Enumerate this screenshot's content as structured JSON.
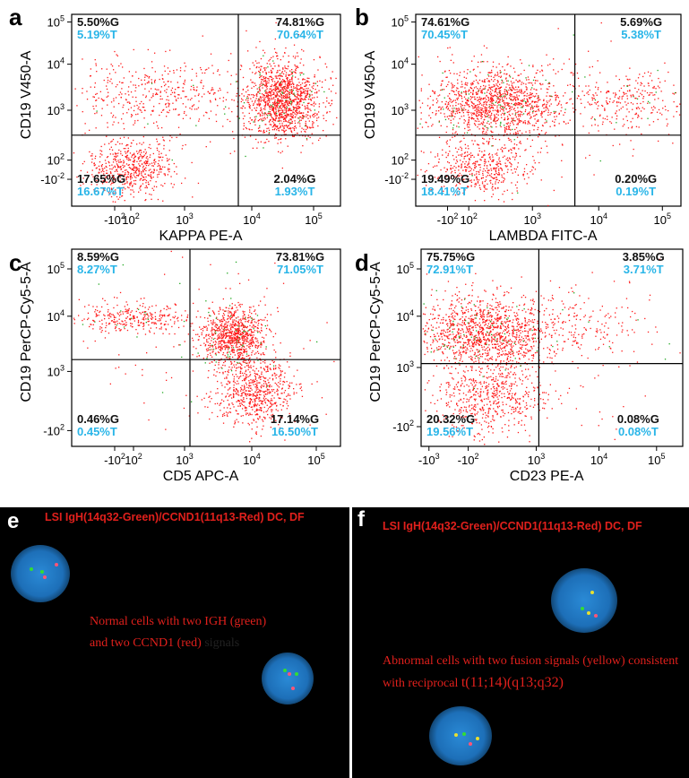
{
  "colors": {
    "gated": "#ff1a1a",
    "gated_green": "#22a822",
    "total_pct": "#29b5e8",
    "gate_pct": "#111111",
    "fish_red": "#e0201c",
    "fish_green": "#33dd33",
    "fish_yellow": "#e8e030",
    "nucleus": "#1e78c8"
  },
  "panels": [
    {
      "letter": "a",
      "ylabel": "CD19 V450-A",
      "xlabel": "KAPPA PE-A",
      "yticks": [
        {
          "label": "10",
          "exp": "5"
        },
        {
          "label": "10",
          "exp": "4"
        },
        {
          "label": "10",
          "exp": "3"
        },
        {
          "label": "10",
          "exp": "2"
        },
        {
          "label": "-10",
          "exp": "-2"
        }
      ],
      "xticks": [
        {
          "label": "-10",
          "exp": "2"
        },
        {
          "label": "10",
          "exp": "2"
        },
        {
          "label": "10",
          "exp": "3"
        },
        {
          "label": "10",
          "exp": "4"
        },
        {
          "label": "10",
          "exp": "5"
        }
      ],
      "quadrants": {
        "ul": [
          "5.50%G",
          "5.19%T"
        ],
        "ur": [
          "74.81%G",
          "70.64%T"
        ],
        "ll": [
          "17.65%G",
          "16.67%T"
        ],
        "lr": [
          "2.04%G",
          "1.93%T"
        ]
      }
    },
    {
      "letter": "b",
      "ylabel": "CD19 V450-A",
      "xlabel": "LAMBDA FITC-A",
      "yticks": [
        {
          "label": "10",
          "exp": "5"
        },
        {
          "label": "10",
          "exp": "4"
        },
        {
          "label": "10",
          "exp": "3"
        },
        {
          "label": "10",
          "exp": "2"
        },
        {
          "label": "-10",
          "exp": "-2"
        }
      ],
      "xticks": [
        {
          "label": "-10",
          "exp": "2"
        },
        {
          "label": "10",
          "exp": "2"
        },
        {
          "label": "10",
          "exp": "3"
        },
        {
          "label": "10",
          "exp": "4"
        },
        {
          "label": "10",
          "exp": "5"
        }
      ],
      "quadrants": {
        "ul": [
          "74.61%G",
          "70.45%T"
        ],
        "ur": [
          "5.69%G",
          "5.38%T"
        ],
        "ll": [
          "19.49%G",
          "18.41%T"
        ],
        "lr": [
          "0.20%G",
          "0.19%T"
        ]
      }
    },
    {
      "letter": "c",
      "ylabel": "CD19 PerCP-Cy5-5-A",
      "xlabel": "CD5 APC-A",
      "yticks": [
        {
          "label": "10",
          "exp": "5"
        },
        {
          "label": "10",
          "exp": "4"
        },
        {
          "label": "10",
          "exp": "3"
        },
        {
          "label": "-10",
          "exp": "2"
        }
      ],
      "xticks": [
        {
          "label": "-10",
          "exp": "2"
        },
        {
          "label": "10",
          "exp": "2"
        },
        {
          "label": "10",
          "exp": "3"
        },
        {
          "label": "10",
          "exp": "4"
        },
        {
          "label": "10",
          "exp": "5"
        }
      ],
      "quadrants": {
        "ul": [
          "8.59%G",
          "8.27%T"
        ],
        "ur": [
          "73.81%G",
          "71.05%T"
        ],
        "ll": [
          "0.46%G",
          "0.45%T"
        ],
        "lr": [
          "17.14%G",
          "16.50%T"
        ]
      }
    },
    {
      "letter": "d",
      "ylabel": "CD19 PerCP-Cy5-5-A",
      "xlabel": "CD23 PE-A",
      "yticks": [
        {
          "label": "10",
          "exp": "5"
        },
        {
          "label": "10",
          "exp": "4"
        },
        {
          "label": "10",
          "exp": "3"
        },
        {
          "label": "-10",
          "exp": "2"
        }
      ],
      "xticks": [
        {
          "label": "-10",
          "exp": "3"
        },
        {
          "label": "-10",
          "exp": "2"
        },
        {
          "label": "10",
          "exp": "3"
        },
        {
          "label": "10",
          "exp": "4"
        },
        {
          "label": "10",
          "exp": "5"
        }
      ],
      "quadrants": {
        "ul": [
          "75.75%G",
          "72.91%T"
        ],
        "ur": [
          "3.85%G",
          "3.71%T"
        ],
        "ll": [
          "20.32%G",
          "19.56%T"
        ],
        "lr": [
          "0.08%G",
          "0.08%T"
        ]
      }
    }
  ],
  "fish": [
    {
      "letter": "e",
      "title": "LSI IgH(14q32-Green)/CCND1(11q13-Red)  DC, DF",
      "note_red": "Normal cells with two IGH (green) and two CCND1 (red)",
      "note_dark": "signals"
    },
    {
      "letter": "f",
      "title": "LSI IgH(14q32-Green)/CCND1(11q13-Red)  DC, DF",
      "note_red": "Abnormal cells with two fusion signals (yellow) consistent with reciprocal",
      "note_dark": "t(11;14)(q13;q32)"
    }
  ],
  "chart_data": [
    {
      "type": "scatter",
      "panel": "a",
      "xlabel": "KAPPA PE-A",
      "ylabel": "CD19 V450-A",
      "x_ticks": [
        "-10^2",
        "10^2",
        "10^3",
        "10^4",
        "10^5"
      ],
      "y_ticks": [
        "10^5",
        "10^4",
        "10^3",
        "10^2",
        "-10^-2"
      ],
      "quadrant_percent": {
        "upper_left": {
          "G": 5.5,
          "T": 5.19
        },
        "upper_right": {
          "G": 74.81,
          "T": 70.64
        },
        "lower_left": {
          "G": 17.65,
          "T": 16.67
        },
        "lower_right": {
          "G": 2.04,
          "T": 1.93
        }
      }
    },
    {
      "type": "scatter",
      "panel": "b",
      "xlabel": "LAMBDA FITC-A",
      "ylabel": "CD19 V450-A",
      "x_ticks": [
        "-10^2",
        "10^2",
        "10^3",
        "10^4",
        "10^5"
      ],
      "y_ticks": [
        "10^5",
        "10^4",
        "10^3",
        "10^2",
        "-10^-2"
      ],
      "quadrant_percent": {
        "upper_left": {
          "G": 74.61,
          "T": 70.45
        },
        "upper_right": {
          "G": 5.69,
          "T": 5.38
        },
        "lower_left": {
          "G": 19.49,
          "T": 18.41
        },
        "lower_right": {
          "G": 0.2,
          "T": 0.19
        }
      }
    },
    {
      "type": "scatter",
      "panel": "c",
      "xlabel": "CD5 APC-A",
      "ylabel": "CD19 PerCP-Cy5-5-A",
      "x_ticks": [
        "-10^2",
        "10^2",
        "10^3",
        "10^4",
        "10^5"
      ],
      "y_ticks": [
        "10^5",
        "10^4",
        "10^3",
        "-10^2"
      ],
      "quadrant_percent": {
        "upper_left": {
          "G": 8.59,
          "T": 8.27
        },
        "upper_right": {
          "G": 73.81,
          "T": 71.05
        },
        "lower_left": {
          "G": 0.46,
          "T": 0.45
        },
        "lower_right": {
          "G": 17.14,
          "T": 16.5
        }
      }
    },
    {
      "type": "scatter",
      "panel": "d",
      "xlabel": "CD23 PE-A",
      "ylabel": "CD19 PerCP-Cy5-5-A",
      "x_ticks": [
        "-10^3",
        "-10^2",
        "10^3",
        "10^4",
        "10^5"
      ],
      "y_ticks": [
        "10^5",
        "10^4",
        "10^3",
        "-10^2"
      ],
      "quadrant_percent": {
        "upper_left": {
          "G": 75.75,
          "T": 72.91
        },
        "upper_right": {
          "G": 3.85,
          "T": 3.71
        },
        "lower_left": {
          "G": 20.32,
          "T": 19.56
        },
        "lower_right": {
          "G": 0.08,
          "T": 0.08
        }
      }
    }
  ]
}
